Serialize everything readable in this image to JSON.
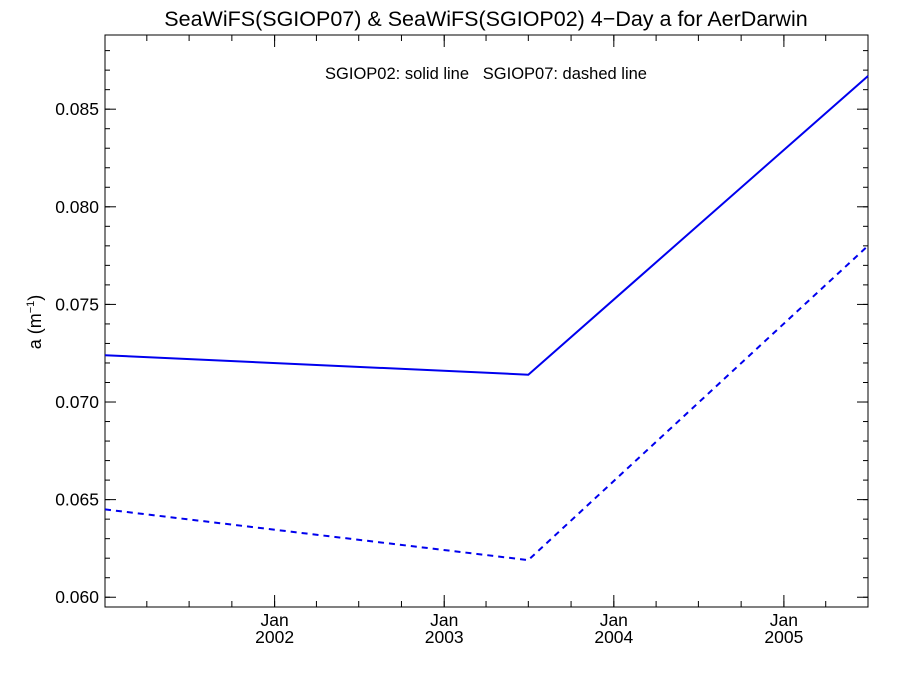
{
  "chart_data": {
    "type": "line",
    "title": "SeaWiFS(SGIOP07) & SeaWiFS(SGIOP02) 4−Day a for AerDarwin",
    "annotation": "SGIOP02: solid line   SGIOP07: dashed line",
    "ylabel_base": "a (m",
    "ylabel_sup": "−1",
    "ylabel_close": ")",
    "xlabel": "",
    "xlim": [
      "2001-01-01",
      "2005-07-01"
    ],
    "ylim": [
      0.0595,
      0.0888
    ],
    "grid": false,
    "line_color": "#0000ee",
    "x_ticks": [
      {
        "date": "2002-01-01",
        "month": "Jan",
        "year": "2002"
      },
      {
        "date": "2003-01-01",
        "month": "Jan",
        "year": "2003"
      },
      {
        "date": "2004-01-01",
        "month": "Jan",
        "year": "2004"
      },
      {
        "date": "2005-01-01",
        "month": "Jan",
        "year": "2005"
      }
    ],
    "y_ticks": [
      {
        "value": 0.06,
        "label": "0.060"
      },
      {
        "value": 0.065,
        "label": "0.065"
      },
      {
        "value": 0.07,
        "label": "0.070"
      },
      {
        "value": 0.075,
        "label": "0.075"
      },
      {
        "value": 0.08,
        "label": "0.080"
      },
      {
        "value": 0.085,
        "label": "0.085"
      }
    ],
    "y_minor_step": 0.001,
    "series": [
      {
        "name": "SGIOP02",
        "style": "solid",
        "x": [
          "2001-01-01",
          "2003-07-01",
          "2005-07-01"
        ],
        "y": [
          0.0724,
          0.0714,
          0.0867
        ]
      },
      {
        "name": "SGIOP07",
        "style": "dashed",
        "x": [
          "2001-01-01",
          "2003-07-01",
          "2005-07-01"
        ],
        "y": [
          0.0645,
          0.0619,
          0.078
        ]
      }
    ]
  }
}
